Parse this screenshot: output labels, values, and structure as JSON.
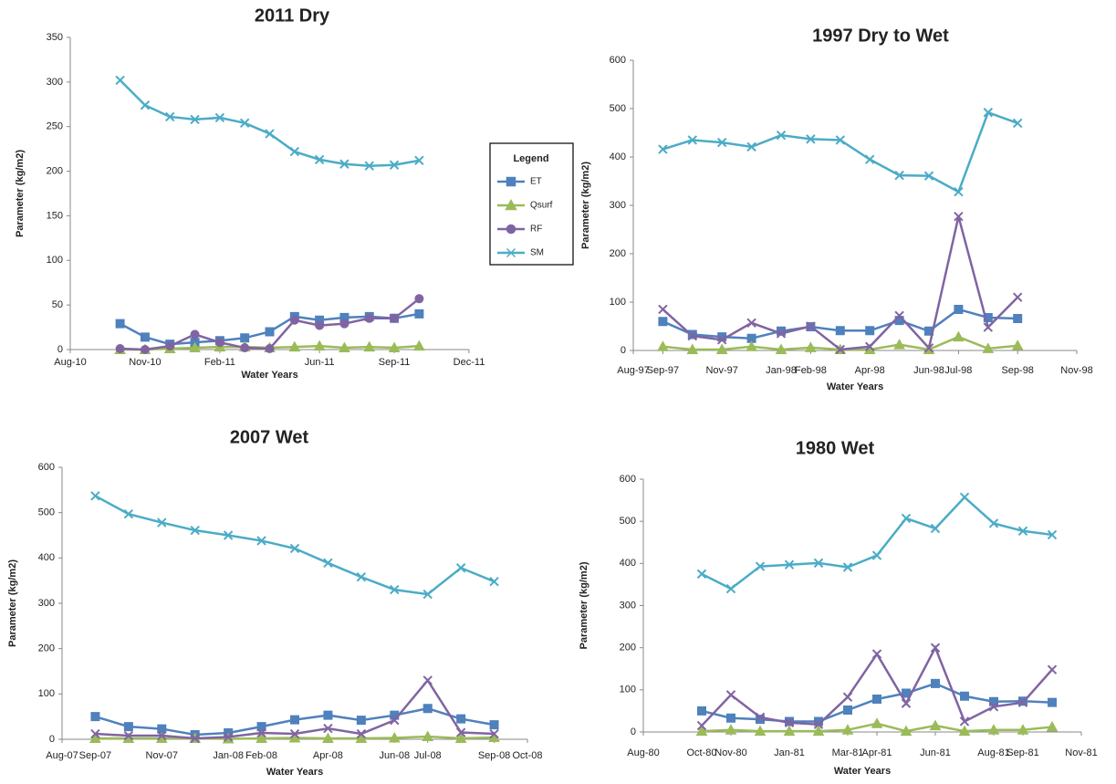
{
  "chart_data": [
    {
      "type": "line",
      "title": "2011 Dry",
      "x_label": "Water Years",
      "y_label": "Parameter (kg/m2)",
      "legend_title": "Legend",
      "x": [
        "2010-10",
        "2010-11",
        "2010-12",
        "2011-01",
        "2011-02",
        "2011-03",
        "2011-04",
        "2011-05",
        "2011-06",
        "2011-07",
        "2011-08",
        "2011-09",
        "2011-10"
      ],
      "xlim": [
        "2010-08",
        "2011-12"
      ],
      "xticks": [
        {
          "value": "2010-08",
          "label": "Aug-10"
        },
        {
          "value": "2010-11",
          "label": "Nov-10"
        },
        {
          "value": "2011-02",
          "label": "Feb-11"
        },
        {
          "value": "2011-06",
          "label": "Jun-11"
        },
        {
          "value": "2011-09",
          "label": "Sep-11"
        },
        {
          "value": "2011-12",
          "label": "Dec-11"
        }
      ],
      "ylim": [
        0,
        350
      ],
      "yticks": [
        0,
        50,
        100,
        150,
        200,
        250,
        300,
        350
      ],
      "series": [
        {
          "name": "ET",
          "color": "#4f81bd",
          "marker": "square",
          "values": [
            29,
            14,
            6,
            8,
            10,
            13,
            20,
            37,
            33,
            36,
            37,
            35,
            40
          ]
        },
        {
          "name": "Qsurf",
          "color": "#9bbb59",
          "marker": "triangle",
          "values": [
            0,
            0,
            1,
            2,
            3,
            3,
            2,
            3,
            4,
            2,
            3,
            2,
            4
          ]
        },
        {
          "name": "RF",
          "color": "#8064a2",
          "marker": "circle",
          "values": [
            1,
            0,
            4,
            17,
            8,
            2,
            1,
            33,
            27,
            29,
            35,
            35,
            57
          ]
        },
        {
          "name": "SM",
          "color": "#4bacc6",
          "marker": "x",
          "values": [
            302,
            274,
            261,
            258,
            260,
            254,
            242,
            222,
            213,
            208,
            206,
            207,
            212
          ]
        }
      ]
    },
    {
      "type": "line",
      "title": "1997 Dry  to Wet",
      "x_label": "Water Years",
      "y_label": "Parameter (kg/m2)",
      "x": [
        "1997-09",
        "1997-10",
        "1997-11",
        "1997-12",
        "1998-01",
        "1998-02",
        "1998-03",
        "1998-04",
        "1998-05",
        "1998-06",
        "1998-07",
        "1998-08",
        "1998-09"
      ],
      "xlim": [
        "1997-08",
        "1998-11"
      ],
      "xticks": [
        {
          "value": "1997-08",
          "label": "Aug-97"
        },
        {
          "value": "1997-09",
          "label": "Sep-97"
        },
        {
          "value": "1997-11",
          "label": "Nov-97"
        },
        {
          "value": "1998-01",
          "label": "Jan-98"
        },
        {
          "value": "1998-02",
          "label": "Feb-98"
        },
        {
          "value": "1998-04",
          "label": "Apr-98"
        },
        {
          "value": "1998-06",
          "label": "Jun-98"
        },
        {
          "value": "1998-07",
          "label": "Jul-98"
        },
        {
          "value": "1998-09",
          "label": "Sep-98"
        },
        {
          "value": "1998-11",
          "label": "Nov-98"
        }
      ],
      "ylim": [
        0,
        600
      ],
      "yticks": [
        0,
        100,
        200,
        300,
        400,
        500,
        600
      ],
      "series": [
        {
          "color": "#4f81bd",
          "marker": "square",
          "values": [
            60,
            33,
            28,
            25,
            40,
            49,
            41,
            41,
            62,
            40,
            85,
            68,
            66
          ]
        },
        {
          "color": "#9bbb59",
          "marker": "triangle",
          "values": [
            8,
            2,
            2,
            8,
            2,
            6,
            2,
            2,
            12,
            2,
            28,
            4,
            10
          ]
        },
        {
          "color": "#8064a2",
          "marker": "x",
          "values": [
            85,
            30,
            22,
            57,
            35,
            50,
            2,
            8,
            72,
            5,
            277,
            48,
            110
          ]
        },
        {
          "color": "#4bacc6",
          "marker": "x",
          "values": [
            416,
            435,
            430,
            421,
            445,
            437,
            435,
            395,
            362,
            361,
            328,
            492,
            470
          ]
        }
      ]
    },
    {
      "type": "line",
      "title": "2007 Wet",
      "x_label": "Water Years",
      "y_label": "Parameter (kg/m2)",
      "x": [
        "2007-09",
        "2007-10",
        "2007-11",
        "2007-12",
        "2008-01",
        "2008-02",
        "2008-03",
        "2008-04",
        "2008-05",
        "2008-06",
        "2008-07",
        "2008-08",
        "2008-09"
      ],
      "xlim": [
        "2007-08",
        "2008-10"
      ],
      "xticks": [
        {
          "value": "2007-08",
          "label": "Aug-07"
        },
        {
          "value": "2007-09",
          "label": "Sep-07"
        },
        {
          "value": "2007-11",
          "label": "Nov-07"
        },
        {
          "value": "2008-01",
          "label": "Jan-08"
        },
        {
          "value": "2008-02",
          "label": "Feb-08"
        },
        {
          "value": "2008-04",
          "label": "Apr-08"
        },
        {
          "value": "2008-06",
          "label": "Jun-08"
        },
        {
          "value": "2008-07",
          "label": "Jul-08"
        },
        {
          "value": "2008-09",
          "label": "Sep-08"
        },
        {
          "value": "2008-10",
          "label": "Oct-08"
        }
      ],
      "ylim": [
        0,
        600
      ],
      "yticks": [
        0,
        100,
        200,
        300,
        400,
        500,
        600
      ],
      "series": [
        {
          "color": "#4f81bd",
          "marker": "square",
          "values": [
            50,
            28,
            23,
            10,
            14,
            28,
            43,
            53,
            42,
            53,
            68,
            45,
            32
          ]
        },
        {
          "color": "#9bbb59",
          "marker": "triangle",
          "values": [
            2,
            2,
            2,
            2,
            1,
            2,
            3,
            2,
            2,
            3,
            6,
            2,
            4
          ]
        },
        {
          "color": "#8064a2",
          "marker": "x",
          "values": [
            12,
            8,
            8,
            2,
            5,
            14,
            12,
            24,
            12,
            42,
            130,
            15,
            12
          ]
        },
        {
          "color": "#4bacc6",
          "marker": "x",
          "values": [
            537,
            497,
            478,
            461,
            450,
            438,
            421,
            389,
            358,
            330,
            320,
            378,
            348
          ]
        }
      ]
    },
    {
      "type": "line",
      "title": "1980 Wet",
      "x_label": "Water Years",
      "y_label": "Parameter (kg/m2)",
      "x": [
        "1980-10",
        "1980-11",
        "1980-12",
        "1981-01",
        "1981-02",
        "1981-03",
        "1981-04",
        "1981-05",
        "1981-06",
        "1981-07",
        "1981-08",
        "1981-09",
        "1981-10"
      ],
      "xlim": [
        "1980-08",
        "1981-11"
      ],
      "xticks": [
        {
          "value": "1980-08",
          "label": "Aug-80"
        },
        {
          "value": "1980-10",
          "label": "Oct-80"
        },
        {
          "value": "1980-11",
          "label": "Nov-80"
        },
        {
          "value": "1981-01",
          "label": "Jan-81"
        },
        {
          "value": "1981-03",
          "label": "Mar-81"
        },
        {
          "value": "1981-04",
          "label": "Apr-81"
        },
        {
          "value": "1981-06",
          "label": "Jun-81"
        },
        {
          "value": "1981-08",
          "label": "Aug-81"
        },
        {
          "value": "1981-09",
          "label": "Sep-81"
        },
        {
          "value": "1981-11",
          "label": "Nov-81"
        }
      ],
      "ylim": [
        0,
        600
      ],
      "yticks": [
        0,
        100,
        200,
        300,
        400,
        500,
        600
      ],
      "series": [
        {
          "color": "#4f81bd",
          "marker": "square",
          "values": [
            50,
            33,
            30,
            25,
            25,
            52,
            78,
            92,
            115,
            85,
            72,
            73,
            70
          ]
        },
        {
          "color": "#9bbb59",
          "marker": "triangle",
          "values": [
            2,
            5,
            2,
            2,
            2,
            5,
            20,
            2,
            15,
            2,
            5,
            5,
            12
          ]
        },
        {
          "color": "#8064a2",
          "marker": "x",
          "values": [
            15,
            88,
            35,
            22,
            18,
            83,
            185,
            68,
            200,
            25,
            60,
            70,
            148
          ]
        },
        {
          "color": "#4bacc6",
          "marker": "x",
          "values": [
            375,
            340,
            393,
            397,
            401,
            391,
            419,
            507,
            483,
            557,
            495,
            477,
            468
          ]
        }
      ]
    }
  ]
}
